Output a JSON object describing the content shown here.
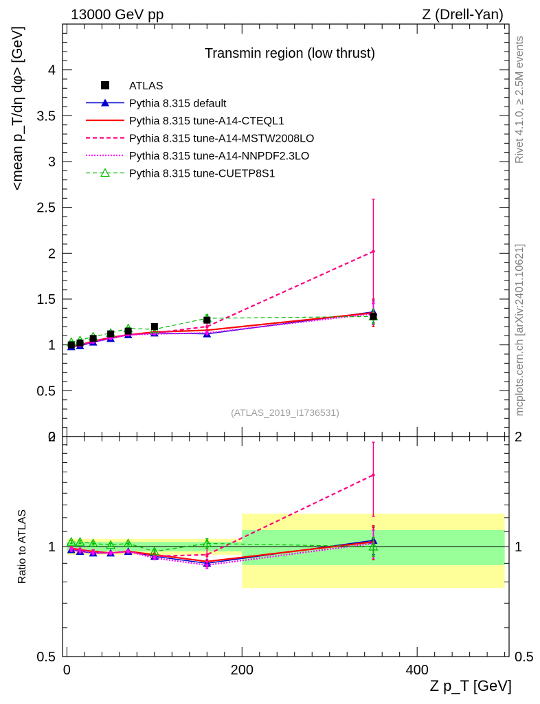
{
  "header": {
    "left": "13000 GeV pp",
    "right": "Z (Drell-Yan)"
  },
  "side_labels": {
    "rivet": "Rivet 4.1.0, ≥ 2.5M events",
    "mcplots": "mcplots.cern.ch [arXiv:2401.10621]"
  },
  "colors": {
    "atlas": "#000000",
    "default": "#0000cc",
    "cteql1": "#ff0000",
    "mstw": "#ff007f",
    "nnpdf": "#ff00ff",
    "cuetp8s1": "#00bb00",
    "band_inner": "#99ff99",
    "band_outer": "#ffff99"
  },
  "chart_data": [
    {
      "type": "line",
      "panel": "main",
      "title": "Transmin region (low thrust)",
      "watermark": "(ATLAS_2019_I1736531)",
      "ylabel": "<mean p_T/dη dφ> [GeV]",
      "xlim": [
        -5,
        505
      ],
      "ylim": [
        0,
        4.5
      ],
      "yticks": [
        "0",
        "0.5",
        "1",
        "1.5",
        "2",
        "2.5",
        "3",
        "3.5",
        "4"
      ],
      "legend": [
        {
          "key": "atlas",
          "label": "ATLAS"
        },
        {
          "key": "default",
          "label": "Pythia 8.315 default"
        },
        {
          "key": "cteql1",
          "label": "Pythia 8.315 tune-A14-CTEQL1"
        },
        {
          "key": "mstw",
          "label": "Pythia 8.315 tune-A14-MSTW2008LO"
        },
        {
          "key": "nnpdf",
          "label": "Pythia 8.315 tune-A14-NNPDF2.3LO"
        },
        {
          "key": "cuetp8s1",
          "label": "Pythia 8.315 tune-CUETP8S1"
        }
      ],
      "x": [
        5,
        15,
        30,
        50,
        70,
        100,
        160,
        350
      ],
      "atlas": [
        1.0,
        1.02,
        1.07,
        1.12,
        1.15,
        1.2,
        1.27,
        1.31
      ],
      "series": [
        {
          "key": "default",
          "name": "Pythia 8.315 default",
          "values": [
            0.98,
            0.99,
            1.03,
            1.07,
            1.11,
            1.13,
            1.12,
            1.36
          ],
          "err": [
            0.01,
            0.01,
            0.01,
            0.01,
            0.01,
            0.01,
            0.02,
            0.12
          ]
        },
        {
          "key": "cteql1",
          "name": "Pythia 8.315 tune-A14-CTEQL1",
          "values": [
            0.99,
            1.0,
            1.04,
            1.08,
            1.11,
            1.14,
            1.16,
            1.35
          ],
          "err": [
            0.01,
            0.01,
            0.01,
            0.01,
            0.01,
            0.01,
            0.03,
            0.15
          ]
        },
        {
          "key": "mstw",
          "name": "Pythia 8.315 tune-A14-MSTW2008LO",
          "values": [
            0.99,
            1.0,
            1.04,
            1.08,
            1.11,
            1.13,
            1.2,
            2.02
          ],
          "err": [
            0.01,
            0.01,
            0.01,
            0.01,
            0.01,
            0.01,
            0.05,
            0.57
          ]
        },
        {
          "key": "nnpdf",
          "name": "Pythia 8.315 tune-A14-NNPDF2.3LO",
          "values": [
            0.98,
            0.99,
            1.03,
            1.07,
            1.11,
            1.12,
            1.13,
            1.34
          ],
          "err": [
            0.01,
            0.01,
            0.01,
            0.01,
            0.01,
            0.01,
            0.02,
            0.12
          ]
        },
        {
          "key": "cuetp8s1",
          "name": "Pythia 8.315 tune-CUETP8S1",
          "values": [
            1.03,
            1.05,
            1.09,
            1.13,
            1.18,
            1.17,
            1.29,
            1.31
          ],
          "err": [
            0.01,
            0.01,
            0.01,
            0.01,
            0.01,
            0.01,
            0.04,
            0.08
          ]
        }
      ]
    },
    {
      "type": "line",
      "panel": "ratio",
      "ylabel": "Ratio to ATLAS",
      "xlabel": "Z p_T [GeV]",
      "xlim": [
        -5,
        505
      ],
      "ylim": [
        0.5,
        2.0
      ],
      "scale": "log",
      "yticks": [
        "0.5",
        "1",
        "2"
      ],
      "xticks": [
        "0",
        "200",
        "400"
      ],
      "bands": [
        {
          "x0": 0,
          "x1": 200,
          "inner": 0.03,
          "outer": 0.05
        },
        {
          "x0": 200,
          "x1": 500,
          "inner": 0.11,
          "outer": 0.23
        }
      ],
      "x": [
        5,
        15,
        30,
        50,
        70,
        100,
        160,
        350
      ],
      "series": [
        {
          "key": "default",
          "values": [
            0.98,
            0.97,
            0.96,
            0.96,
            0.97,
            0.94,
            0.9,
            1.04
          ],
          "err": [
            0.01,
            0.01,
            0.01,
            0.01,
            0.01,
            0.01,
            0.02,
            0.09
          ]
        },
        {
          "key": "cteql1",
          "values": [
            0.99,
            0.98,
            0.97,
            0.96,
            0.97,
            0.95,
            0.91,
            1.03
          ],
          "err": [
            0.01,
            0.01,
            0.01,
            0.01,
            0.01,
            0.01,
            0.03,
            0.11
          ]
        },
        {
          "key": "mstw",
          "values": [
            0.99,
            0.98,
            0.97,
            0.96,
            0.97,
            0.94,
            0.95,
            1.57
          ],
          "err": [
            0.01,
            0.01,
            0.01,
            0.01,
            0.01,
            0.01,
            0.04,
            0.36
          ]
        },
        {
          "key": "nnpdf",
          "values": [
            0.98,
            0.97,
            0.96,
            0.96,
            0.97,
            0.93,
            0.89,
            1.02
          ],
          "err": [
            0.01,
            0.01,
            0.01,
            0.01,
            0.01,
            0.01,
            0.02,
            0.09
          ]
        },
        {
          "key": "cuetp8s1",
          "values": [
            1.03,
            1.03,
            1.02,
            1.01,
            1.02,
            0.97,
            1.02,
            1.0
          ],
          "err": [
            0.01,
            0.01,
            0.01,
            0.01,
            0.01,
            0.01,
            0.03,
            0.06
          ]
        }
      ]
    }
  ]
}
